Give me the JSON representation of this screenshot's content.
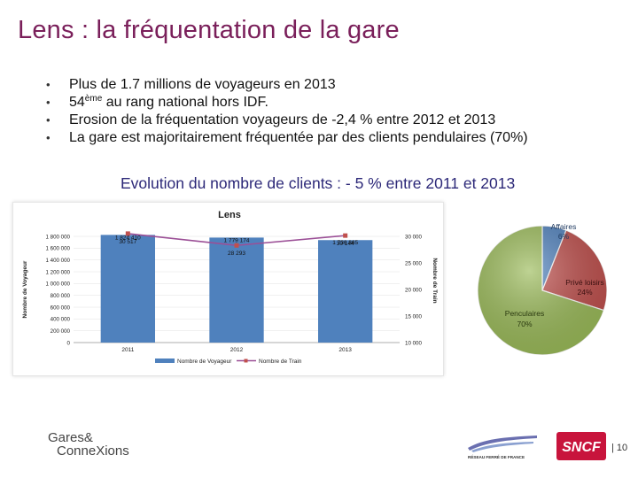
{
  "title": "Lens : la fréquentation de la gare",
  "bullets": [
    {
      "text": "Plus de 1.7 millions de voyageurs en 2013"
    },
    {
      "pre": "54",
      "sup": "ème",
      "post": " au rang national hors IDF."
    },
    {
      "text": "Erosion de la fréquentation voyageurs de -2,4 % entre 2012 et 2013"
    },
    {
      "text": "La gare est majoritairement fréquentée par des clients pendulaires (70%)"
    }
  ],
  "evolution_text": "Evolution du nombre de clients : - 5 % entre 2011 et 2013",
  "chart_data": [
    {
      "type": "bar",
      "title": "Lens",
      "categories": [
        "2011",
        "2012",
        "2013"
      ],
      "series": [
        {
          "name": "Nombre de Voyageur",
          "values": [
            1824410,
            1779174,
            1736365
          ],
          "labels": [
            "1 824 410",
            "1 779 174",
            "1 736 365"
          ],
          "color": "#4f81bd"
        },
        {
          "name": "Nombre de Train",
          "type": "line",
          "axis": "right",
          "values": [
            30517,
            28293,
            30144
          ],
          "labels": [
            "30 517",
            "28 293",
            "30 144"
          ],
          "color": "#9b4f96"
        }
      ],
      "ylabel": "Nombre de Voyageur",
      "ylabel_right": "Nombre de Train",
      "ylim": [
        0,
        1800000
      ],
      "ylim_right": [
        10000,
        30000
      ],
      "yticks": [
        "0",
        "200 000",
        "400 000",
        "600 000",
        "800 000",
        "1 000 000",
        "1 200 000",
        "1 400 000",
        "1 600 000",
        "1 800 000"
      ],
      "yticks_right": [
        "10 000",
        "15 000",
        "20 000",
        "25 000",
        "30 000"
      ],
      "legend": "bottom"
    },
    {
      "type": "pie",
      "slices": [
        {
          "name": "Affaires",
          "value": 6,
          "label": "6%",
          "color": "#4f81bd"
        },
        {
          "name": "Privé loisirs",
          "value": 24,
          "label": "24%",
          "color": "#c0504d"
        },
        {
          "name": "Penculaires",
          "value": 70,
          "label": "70%",
          "color": "#9bbb59"
        }
      ]
    }
  ],
  "footer": {
    "logo_line1": "Gares&",
    "logo_line2": "ConneXions",
    "rff_text": "RÉSEAU FERRÉ DE FRANCE",
    "sncf_text": "SNCF",
    "page_number": "| 10"
  }
}
